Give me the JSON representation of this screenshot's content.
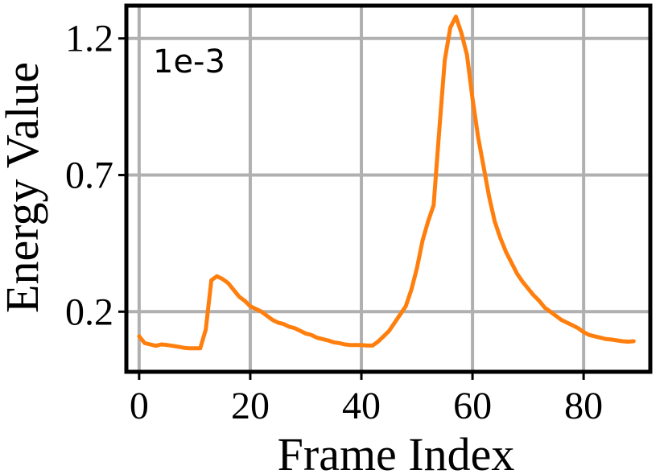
{
  "chart_data": {
    "type": "line",
    "xlabel": "Frame Index",
    "ylabel": "Energy Value",
    "offset_text": "1e-3",
    "xlim": [
      -2.3,
      92
    ],
    "ylim": [
      -0.02,
      1.32
    ],
    "xticks": [
      0,
      20,
      40,
      60,
      80
    ],
    "xtick_labels": [
      "0",
      "20",
      "40",
      "60",
      "80"
    ],
    "yticks": [
      0.2,
      0.7,
      1.2
    ],
    "ytick_labels": [
      "0.2",
      "0.7",
      "1.2"
    ],
    "grid": true,
    "colors": {
      "line": "#ff7f0e",
      "grid": "#b0b0b0",
      "frame": "#000000"
    },
    "series": [
      {
        "x": [
          0,
          1,
          2,
          3,
          4,
          5,
          6,
          7,
          8,
          9,
          10,
          11,
          12,
          13,
          14,
          15,
          16,
          17,
          18,
          19,
          20,
          21,
          22,
          23,
          24,
          25,
          26,
          27,
          28,
          29,
          30,
          31,
          32,
          33,
          34,
          35,
          36,
          37,
          38,
          39,
          40,
          41,
          42,
          43,
          44,
          45,
          46,
          47,
          48,
          49,
          50,
          51,
          52,
          53,
          54,
          55,
          56,
          57,
          58,
          59,
          60,
          61,
          62,
          63,
          64,
          65,
          66,
          67,
          68,
          69,
          70,
          71,
          72,
          73,
          74,
          75,
          76,
          77,
          78,
          79,
          80,
          81,
          82,
          83,
          84,
          85,
          86,
          87,
          88,
          89
        ],
        "values": [
          0.11,
          0.085,
          0.08,
          0.075,
          0.08,
          0.078,
          0.075,
          0.072,
          0.068,
          0.066,
          0.066,
          0.066,
          0.135,
          0.315,
          0.33,
          0.32,
          0.305,
          0.28,
          0.255,
          0.24,
          0.22,
          0.21,
          0.2,
          0.185,
          0.17,
          0.16,
          0.155,
          0.145,
          0.14,
          0.13,
          0.12,
          0.115,
          0.105,
          0.1,
          0.095,
          0.088,
          0.085,
          0.08,
          0.078,
          0.078,
          0.078,
          0.076,
          0.076,
          0.09,
          0.11,
          0.13,
          0.16,
          0.19,
          0.22,
          0.28,
          0.36,
          0.46,
          0.53,
          0.59,
          0.86,
          1.12,
          1.24,
          1.28,
          1.22,
          1.14,
          0.98,
          0.84,
          0.73,
          0.62,
          0.53,
          0.47,
          0.42,
          0.38,
          0.34,
          0.31,
          0.285,
          0.26,
          0.24,
          0.215,
          0.2,
          0.185,
          0.17,
          0.16,
          0.15,
          0.14,
          0.125,
          0.115,
          0.11,
          0.105,
          0.1,
          0.098,
          0.095,
          0.092,
          0.09,
          0.092
        ]
      }
    ]
  }
}
